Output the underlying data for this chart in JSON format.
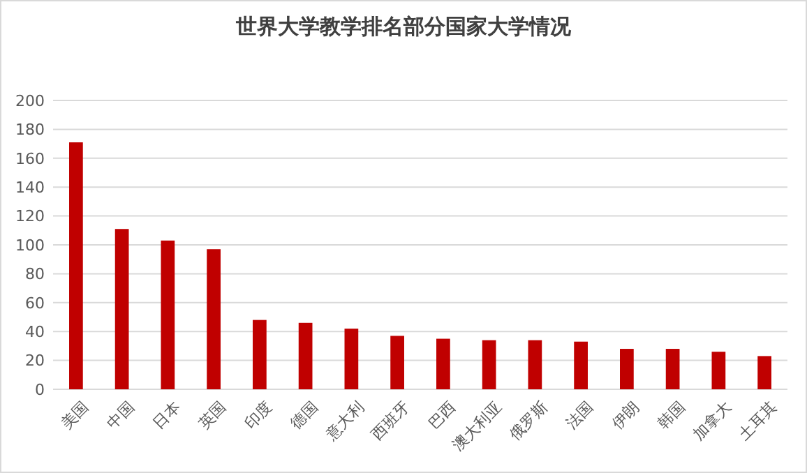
{
  "chart_data": {
    "type": "bar",
    "title": "世界大学教学排名部分国家大学情况",
    "categories": [
      "美国",
      "中国",
      "日本",
      "英国",
      "印度",
      "德国",
      "意大利",
      "西班牙",
      "巴西",
      "澳大利亚",
      "俄罗斯",
      "法国",
      "伊朗",
      "韩国",
      "加拿大",
      "土耳其"
    ],
    "values": [
      171,
      111,
      103,
      97,
      48,
      46,
      42,
      37,
      35,
      34,
      34,
      33,
      28,
      28,
      26,
      23
    ],
    "color": "#c00000",
    "ylim": [
      0,
      200
    ],
    "yticks": [
      0,
      20,
      40,
      60,
      80,
      100,
      120,
      140,
      160,
      180,
      200
    ],
    "grid": "y"
  }
}
